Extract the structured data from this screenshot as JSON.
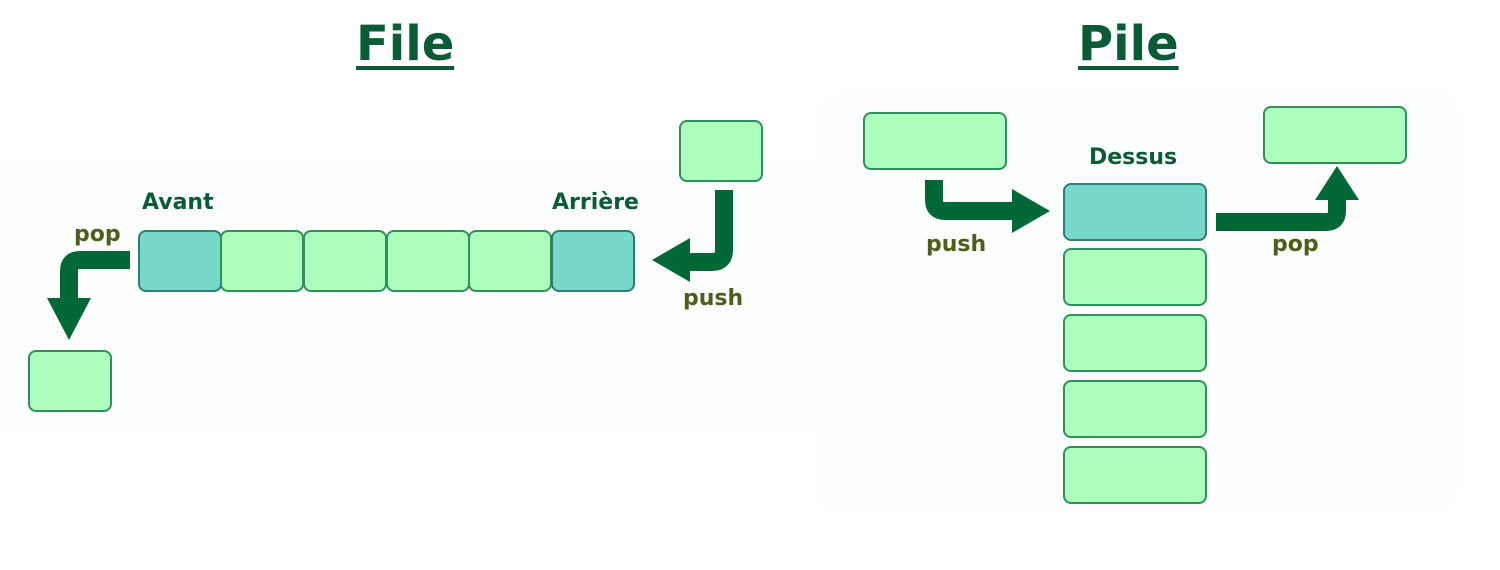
{
  "queue": {
    "title": "File",
    "front_label": "Avant",
    "rear_label": "Arrière",
    "pop_label": "pop",
    "push_label": "push"
  },
  "stack": {
    "title": "Pile",
    "top_label": "Dessus",
    "push_label": "push",
    "pop_label": "pop"
  },
  "colors": {
    "element": "#adffbc",
    "end_element": "#76d9cb",
    "arrow": "#006837",
    "title": "#0b5c36"
  }
}
